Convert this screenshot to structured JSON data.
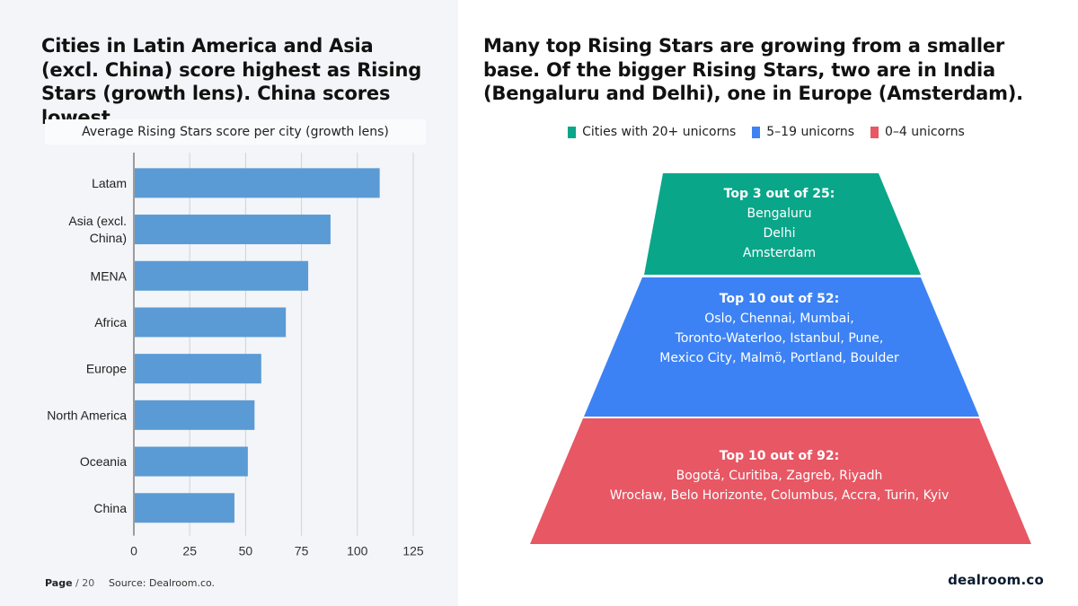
{
  "left": {
    "title": "Cities in Latin America and Asia (excl. China) score highest as Rising Stars (growth lens). China scores lowest."
  },
  "chart_data": {
    "type": "bar",
    "orientation": "horizontal",
    "title": "Average Rising Stars score per city (growth lens)",
    "categories": [
      "Latam",
      "Asia (excl.|China)",
      "MENA",
      "Africa",
      "Europe",
      "North America",
      "Oceania",
      "China"
    ],
    "values": [
      110,
      88,
      78,
      68,
      57,
      54,
      51,
      45
    ],
    "xlim": [
      0,
      125
    ],
    "xticks": [
      "0",
      "25",
      "50",
      "75",
      "100",
      "125"
    ],
    "grid": true,
    "bar_color": "#5b9bd5"
  },
  "footer": {
    "page_label": "Page",
    "page_sep": "/ 20",
    "source": "Source: Dealroom.co."
  },
  "right": {
    "title": "Many top Rising Stars are growing from a smaller base. Of the bigger Rising Stars, two are in India (Bengaluru and Delhi), one in Europe (Amsterdam).",
    "legend": [
      {
        "label": "Cities with 20+ unicorns",
        "color": "#0aa68a"
      },
      {
        "label": "5–19 unicorns",
        "color": "#3d82f4"
      },
      {
        "label": "0–4 unicorns",
        "color": "#e85764"
      }
    ],
    "tiers": [
      {
        "heading": "Top 3 out of 25:",
        "lines": [
          "Bengaluru",
          "Delhi",
          "Amsterdam"
        ],
        "color": "#0aa68a"
      },
      {
        "heading": "Top 10 out of 52:",
        "lines": [
          "Oslo, Chennai, Mumbai,",
          "Toronto-Waterloo, Istanbul, Pune,",
          "Mexico City, Malmö, Portland, Boulder"
        ],
        "color": "#3d82f4"
      },
      {
        "heading": "Top 10 out of 92:",
        "lines": [
          "Bogotá, Curitiba, Zagreb, Riyadh",
          "Wrocław, Belo Horizonte, Columbus, Accra, Turin, Kyiv"
        ],
        "color": "#e85764"
      }
    ]
  },
  "brand": "dealroom.co"
}
